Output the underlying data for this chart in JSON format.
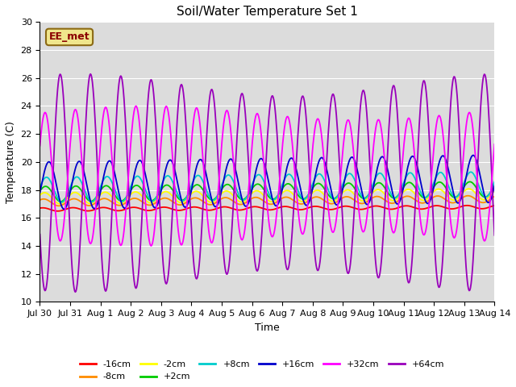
{
  "title": "Soil/Water Temperature Set 1",
  "xlabel": "Time",
  "ylabel": "Temperature (C)",
  "ylim": [
    10,
    30
  ],
  "xlim": [
    0,
    15
  ],
  "bg_color": "#dcdcdc",
  "annotation_text": "EE_met",
  "annotation_bg": "#f0e68c",
  "annotation_border": "#8b6914",
  "xtick_labels": [
    "Jul 30",
    "Jul 31",
    "Aug 1",
    "Aug 2",
    "Aug 3",
    "Aug 4",
    "Aug 5",
    "Aug 6",
    "Aug 7",
    "Aug 8",
    "Aug 9",
    "Aug 10",
    "Aug 11",
    "Aug 12",
    "Aug 13",
    "Aug 14"
  ],
  "colors": {
    "-16cm": "#ff0000",
    "-8cm": "#ff8c00",
    "-2cm": "#ffff00",
    "+2cm": "#00cc00",
    "+8cm": "#00cccc",
    "+16cm": "#0000cc",
    "+32cm": "#ff00ff",
    "+64cm": "#9900bb"
  },
  "legend_order": [
    "-16cm",
    "-8cm",
    "-2cm",
    "+2cm",
    "+8cm",
    "+16cm",
    "+32cm",
    "+64cm"
  ]
}
